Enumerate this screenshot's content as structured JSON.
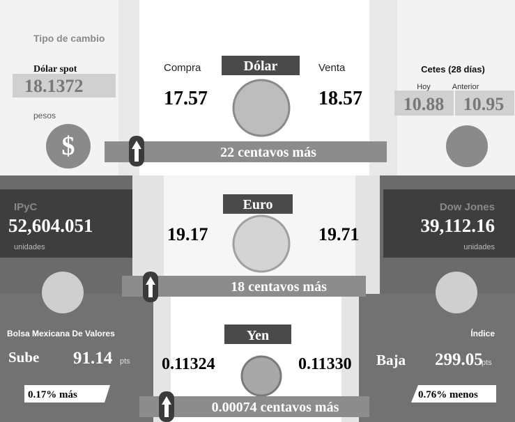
{
  "exchange": {
    "label": "Tipo de cambio",
    "spot_label": "Dólar spot",
    "spot_value": "18.1372",
    "spot_unit": "pesos"
  },
  "dollar": {
    "title": "Dólar",
    "buy_label": "Compra",
    "sell_label": "Venta",
    "buy": "17.57",
    "sell": "18.57",
    "change": "22 centavos más"
  },
  "cetes": {
    "title": "Cetes (28 días)",
    "today_label": "Hoy",
    "previous_label": "Anterior",
    "today": "10.88",
    "previous": "10.95"
  },
  "ipyc": {
    "title": "IPyC",
    "value": "52,604.051",
    "unit": "unidades"
  },
  "euro": {
    "title": "Euro",
    "buy": "19.17",
    "sell": "19.71",
    "change": "18 centavos más"
  },
  "dow_jones": {
    "title": "Dow Jones",
    "value": "39,112.16",
    "unit": "unidades"
  },
  "bmv": {
    "title": "Bolsa Mexicana De Valores",
    "direction": "Sube",
    "points": "91.14",
    "unit": "pts",
    "change": "0.17% más"
  },
  "yen": {
    "title": "Yen",
    "buy": "0.11324",
    "sell": "0.11330",
    "change": "0.00074 centavos más"
  },
  "index": {
    "title": "Índice",
    "direction": "Baja",
    "points": "299.05",
    "unit": "pts",
    "change": "0.76% menos"
  }
}
